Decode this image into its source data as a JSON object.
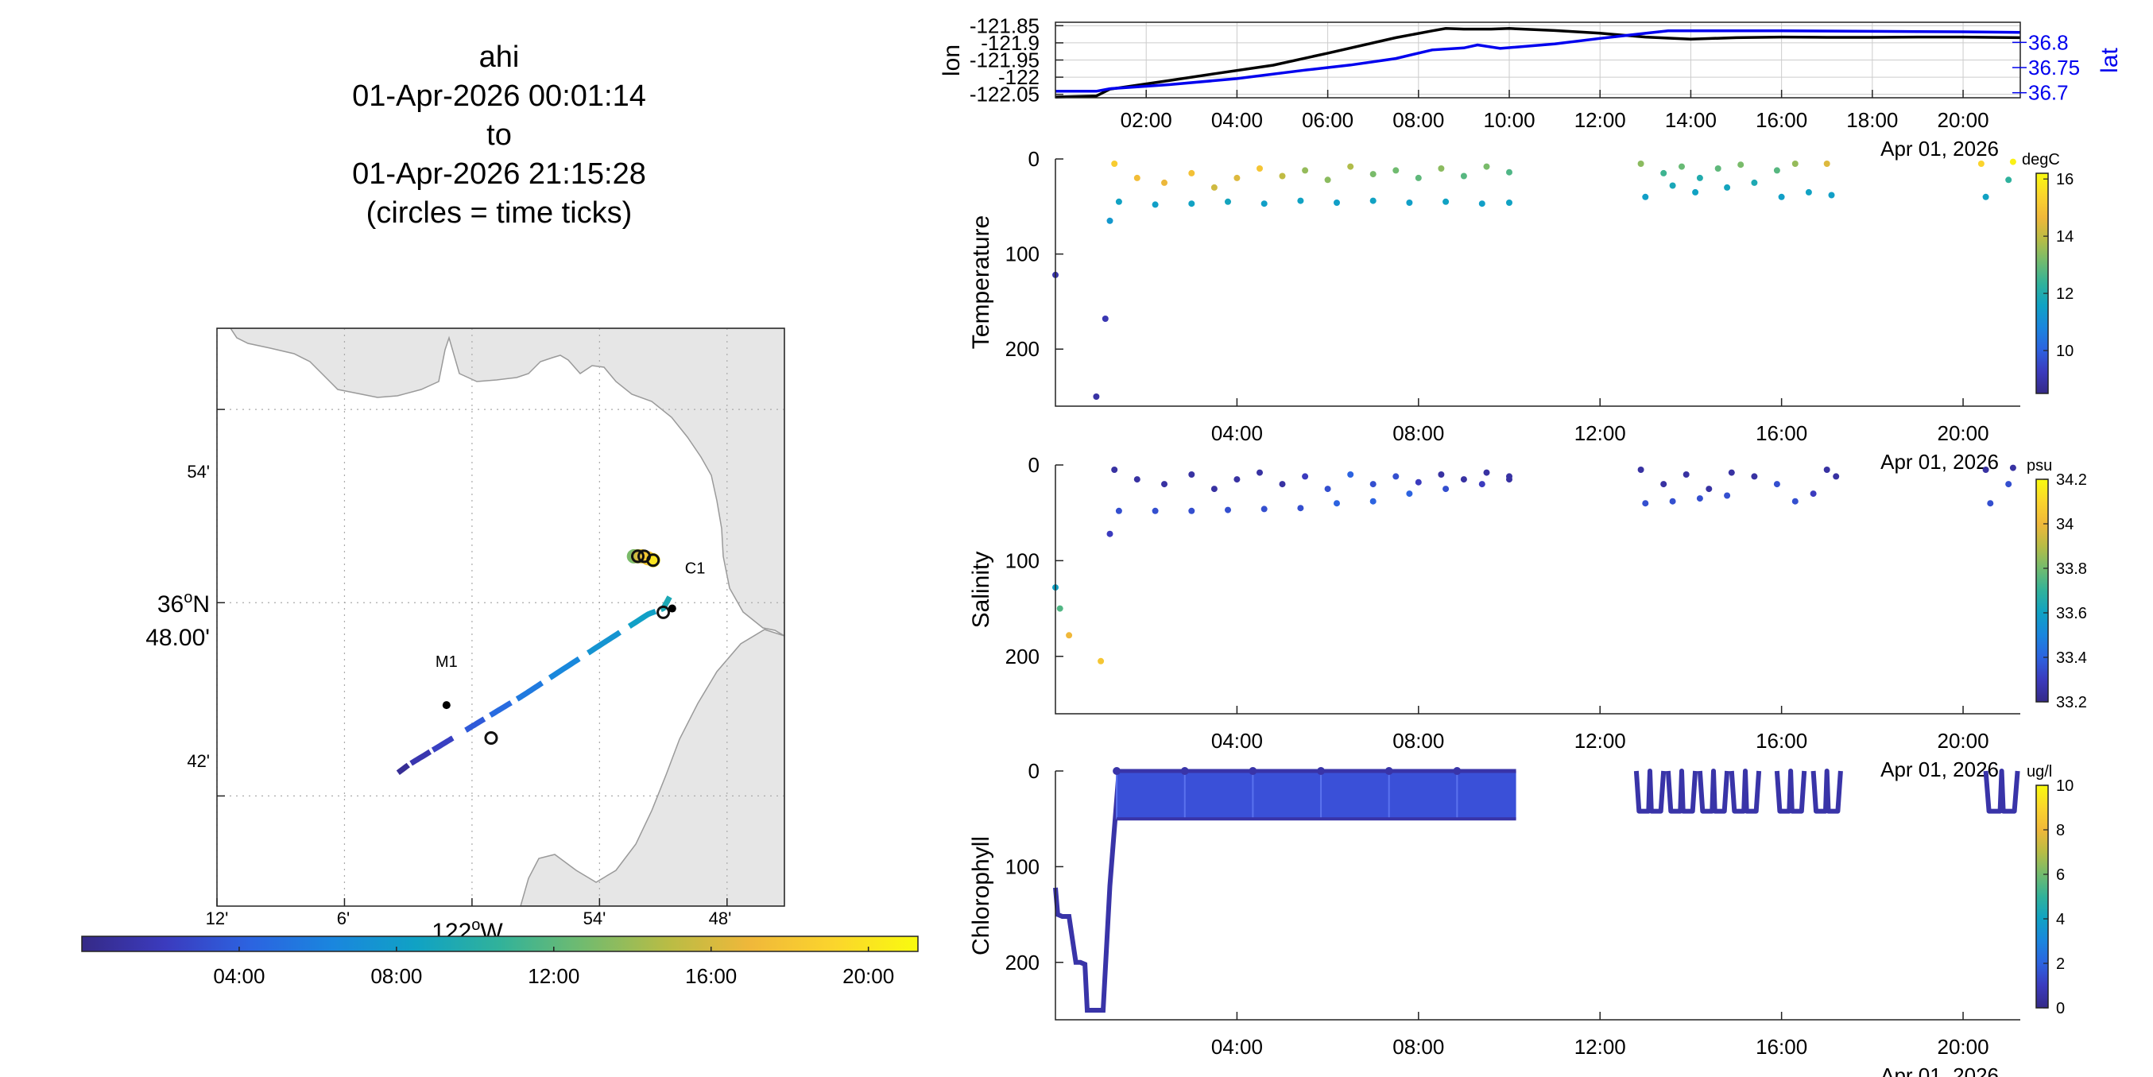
{
  "colors": {
    "axis": "#222222",
    "grid": "#cccccc",
    "land": "#e6e6e6",
    "coast": "#9a9a9a",
    "lon_line": "#000000",
    "lat_line": "#0000ee",
    "map_grid": "#aaaaaa"
  },
  "title": {
    "vehicle": "ahi",
    "start": "01-Apr-2026 00:01:14",
    "to": "to",
    "end": "01-Apr-2026 21:15:28",
    "note": "(circles = time ticks)"
  },
  "map": {
    "lat_ticks": [
      "54'",
      "36°N 48.00'",
      "42'"
    ],
    "lon_ticks": [
      "12'",
      "6'",
      "122°W",
      "54'",
      "48'"
    ],
    "lat_values": [
      36.9,
      36.8,
      36.7
    ],
    "lon_values": [
      -122.2,
      -122.1,
      -122.0,
      -121.9,
      -121.8
    ],
    "moorings": [
      {
        "name": "M1",
        "lon": -122.02,
        "lat": 36.747
      },
      {
        "name": "C1",
        "lon": -121.843,
        "lat": 36.797
      }
    ],
    "track": [
      {
        "t": 0.02,
        "lon": -122.058,
        "lat": 36.712
      },
      {
        "t": 0.9,
        "lon": -122.05,
        "lat": 36.716
      },
      {
        "t": 1.1,
        "lon": -122.05,
        "lat": 36.716
      },
      {
        "t": 2.5,
        "lon": -122.02,
        "lat": 36.728
      },
      {
        "t": 4.0,
        "lon": -121.995,
        "lat": 36.738
      },
      {
        "t": 5.5,
        "lon": -121.96,
        "lat": 36.752
      },
      {
        "t": 6.5,
        "lon": -121.93,
        "lat": 36.765
      },
      {
        "t": 7.5,
        "lon": -121.895,
        "lat": 36.78
      },
      {
        "t": 8.4,
        "lon": -121.862,
        "lat": 36.794
      },
      {
        "t": 9.0,
        "lon": -121.85,
        "lat": 36.797
      },
      {
        "t": 9.6,
        "lon": -121.845,
        "lat": 36.803
      },
      {
        "t": 10.2,
        "lon": -121.845,
        "lat": 36.803
      }
    ],
    "track_segments": [
      [
        0.02,
        1.1
      ],
      [
        1.2,
        1.9
      ],
      [
        2.0,
        2.8
      ],
      [
        3.4,
        4.2
      ],
      [
        4.4,
        5.1
      ],
      [
        5.3,
        6.0
      ],
      [
        6.2,
        6.9
      ],
      [
        7.1,
        7.8
      ],
      [
        8.0,
        8.7
      ],
      [
        8.9,
        9.6
      ],
      [
        9.7,
        10.2
      ]
    ],
    "c1_cluster": [
      {
        "t": 13.0,
        "lon": -121.873,
        "lat": 36.824
      },
      {
        "t": 14.5,
        "lon": -121.87,
        "lat": 36.824
      },
      {
        "t": 16.0,
        "lon": -121.867,
        "lat": 36.824
      },
      {
        "t": 18.0,
        "lon": -121.862,
        "lat": 36.823
      },
      {
        "t": 20.0,
        "lon": -121.858,
        "lat": 36.822
      }
    ],
    "time_tick_circles": [
      {
        "lon": -121.985,
        "lat": 36.73
      },
      {
        "lon": -121.85,
        "lat": 36.795
      },
      {
        "lon": -121.87,
        "lat": 36.824
      },
      {
        "lon": -121.865,
        "lat": 36.824
      },
      {
        "lon": -121.858,
        "lat": 36.822
      }
    ]
  },
  "time_colorbar": {
    "ticks": [
      "04:00",
      "08:00",
      "12:00",
      "16:00",
      "20:00"
    ],
    "tick_hours": [
      4,
      8,
      12,
      16,
      20
    ],
    "range_hours": [
      0,
      21.26
    ]
  },
  "chart_data": [
    {
      "type": "line",
      "title": "",
      "xlabel": "Apr 01, 2026",
      "ylabel": "lon",
      "y2label": "lat",
      "x_range_hours": [
        0,
        21.26
      ],
      "x_ticks": [
        "02:00",
        "04:00",
        "06:00",
        "08:00",
        "10:00",
        "12:00",
        "14:00",
        "16:00",
        "18:00",
        "20:00"
      ],
      "x_tick_hours": [
        2,
        4,
        6,
        8,
        10,
        12,
        14,
        16,
        18,
        20
      ],
      "ylim": [
        -122.06,
        -121.84
      ],
      "y_ticks": [
        "-121.85",
        "-121.9",
        "-121.95",
        "-122",
        "-122.05"
      ],
      "y_tick_values": [
        -121.85,
        -121.9,
        -121.95,
        -122.0,
        -122.05
      ],
      "y2lim": [
        36.69,
        36.84
      ],
      "y2_ticks": [
        "36.8",
        "36.75",
        "36.7"
      ],
      "y2_tick_values": [
        36.8,
        36.75,
        36.7
      ],
      "series": [
        {
          "name": "lon",
          "axis": "left",
          "x": [
            0,
            0.9,
            1.2,
            2.5,
            3.5,
            4.8,
            6.0,
            7.5,
            8.3,
            8.6,
            9.0,
            9.6,
            10.0,
            11.0,
            12.0,
            13.0,
            14.0,
            15.0,
            16.0,
            17.0,
            18.0,
            19.0,
            20.0,
            21.26
          ],
          "values": [
            -122.058,
            -122.055,
            -122.035,
            -122.01,
            -121.99,
            -121.965,
            -121.93,
            -121.885,
            -121.865,
            -121.858,
            -121.86,
            -121.86,
            -121.858,
            -121.864,
            -121.872,
            -121.883,
            -121.889,
            -121.885,
            -121.883,
            -121.884,
            -121.884,
            -121.883,
            -121.883,
            -121.885
          ]
        },
        {
          "name": "lat",
          "axis": "right",
          "x": [
            0,
            0.9,
            1.2,
            2.5,
            4.0,
            5.5,
            6.5,
            7.5,
            8.3,
            9.0,
            9.3,
            9.8,
            11.0,
            12.0,
            13.0,
            13.5,
            14.5,
            16.0,
            18.0,
            20.0,
            21.26
          ],
          "values": [
            36.703,
            36.703,
            36.708,
            36.716,
            36.728,
            36.745,
            36.755,
            36.768,
            36.785,
            36.789,
            36.795,
            36.788,
            36.797,
            36.808,
            36.818,
            36.823,
            36.823,
            36.823,
            36.822,
            36.821,
            36.82
          ]
        }
      ]
    },
    {
      "type": "scatter",
      "title": "",
      "xlabel": "Apr 01, 2026",
      "ylabel": "Temperature",
      "units": "degC",
      "x_range_hours": [
        0,
        21.26
      ],
      "x_ticks": [
        "04:00",
        "08:00",
        "12:00",
        "16:00",
        "20:00"
      ],
      "x_tick_hours": [
        4,
        8,
        12,
        16,
        20
      ],
      "ylim": [
        260,
        0
      ],
      "y_ticks": [
        "0",
        "100",
        "200"
      ],
      "y_tick_values": [
        0,
        100,
        200
      ],
      "clim": [
        8.5,
        16.2
      ],
      "colorbar_ticks": [
        "10",
        "12",
        "14",
        "16"
      ],
      "colorbar_tick_values": [
        10,
        12,
        14,
        16
      ],
      "points": [
        [
          0.0,
          122,
          9.0
        ],
        [
          0.9,
          250,
          8.9
        ],
        [
          1.1,
          168,
          9.1
        ],
        [
          1.2,
          65,
          11.3
        ],
        [
          1.3,
          5,
          15.2
        ],
        [
          1.8,
          20,
          14.8
        ],
        [
          2.4,
          25,
          14.6
        ],
        [
          3.0,
          15,
          14.9
        ],
        [
          3.5,
          30,
          14.2
        ],
        [
          4.0,
          20,
          14.4
        ],
        [
          4.5,
          10,
          15.0
        ],
        [
          5.0,
          18,
          14.0
        ],
        [
          5.5,
          12,
          13.5
        ],
        [
          6.0,
          22,
          13.4
        ],
        [
          6.5,
          8,
          13.8
        ],
        [
          7.0,
          16,
          13.2
        ],
        [
          7.5,
          12,
          13.1
        ],
        [
          8.0,
          20,
          12.9
        ],
        [
          8.5,
          10,
          13.4
        ],
        [
          9.0,
          18,
          12.8
        ],
        [
          9.5,
          8,
          13.2
        ],
        [
          10.0,
          14,
          12.7
        ],
        [
          1.4,
          45,
          11.6
        ],
        [
          2.2,
          48,
          11.5
        ],
        [
          3.0,
          47,
          11.6
        ],
        [
          3.8,
          45,
          11.7
        ],
        [
          4.6,
          47,
          11.5
        ],
        [
          5.4,
          44,
          11.6
        ],
        [
          6.2,
          46,
          11.5
        ],
        [
          7.0,
          44,
          11.6
        ],
        [
          7.8,
          46,
          11.5
        ],
        [
          8.6,
          45,
          11.6
        ],
        [
          9.4,
          47,
          11.5
        ],
        [
          10.0,
          46,
          11.6
        ],
        [
          12.9,
          5,
          13.4
        ],
        [
          13.4,
          15,
          12.5
        ],
        [
          13.8,
          8,
          13.0
        ],
        [
          14.2,
          20,
          12.0
        ],
        [
          14.6,
          10,
          12.9
        ],
        [
          15.1,
          6,
          13.2
        ],
        [
          13.0,
          40,
          11.5
        ],
        [
          13.6,
          28,
          11.8
        ],
        [
          14.1,
          35,
          11.6
        ],
        [
          14.8,
          30,
          11.7
        ],
        [
          15.4,
          25,
          11.9
        ],
        [
          15.9,
          12,
          12.8
        ],
        [
          16.3,
          5,
          13.5
        ],
        [
          16.0,
          40,
          11.5
        ],
        [
          16.6,
          35,
          11.6
        ],
        [
          17.0,
          5,
          14.4
        ],
        [
          17.1,
          38,
          11.5
        ],
        [
          20.4,
          5,
          15.4
        ],
        [
          20.5,
          40,
          11.6
        ],
        [
          21.0,
          22,
          12.3
        ],
        [
          21.1,
          3,
          16.0
        ]
      ]
    },
    {
      "type": "scatter",
      "title": "",
      "xlabel": "Apr 01, 2026",
      "ylabel": "Salinity",
      "units": "psu",
      "x_range_hours": [
        0,
        21.26
      ],
      "x_ticks": [
        "04:00",
        "08:00",
        "12:00",
        "16:00",
        "20:00"
      ],
      "x_tick_hours": [
        4,
        8,
        12,
        16,
        20
      ],
      "ylim": [
        260,
        0
      ],
      "y_ticks": [
        "0",
        "100",
        "200"
      ],
      "y_tick_values": [
        0,
        100,
        200
      ],
      "clim": [
        33.2,
        34.2
      ],
      "colorbar_ticks": [
        "33.2",
        "33.4",
        "33.6",
        "33.8",
        "34",
        "34.2"
      ],
      "colorbar_tick_values": [
        33.2,
        33.4,
        33.6,
        33.8,
        34.0,
        34.2
      ],
      "points": [
        [
          0.0,
          128,
          33.6
        ],
        [
          0.1,
          150,
          33.75
        ],
        [
          0.3,
          178,
          34.0
        ],
        [
          1.0,
          205,
          34.05
        ],
        [
          1.2,
          72,
          33.3
        ],
        [
          1.3,
          5,
          33.25
        ],
        [
          1.8,
          15,
          33.25
        ],
        [
          2.4,
          20,
          33.25
        ],
        [
          3.0,
          10,
          33.25
        ],
        [
          3.5,
          25,
          33.25
        ],
        [
          4.0,
          15,
          33.25
        ],
        [
          4.5,
          8,
          33.25
        ],
        [
          5.0,
          20,
          33.25
        ],
        [
          5.5,
          12,
          33.3
        ],
        [
          6.0,
          25,
          33.35
        ],
        [
          6.5,
          10,
          33.4
        ],
        [
          7.0,
          20,
          33.35
        ],
        [
          7.5,
          12,
          33.35
        ],
        [
          8.0,
          18,
          33.3
        ],
        [
          8.5,
          10,
          33.25
        ],
        [
          9.0,
          15,
          33.25
        ],
        [
          9.5,
          8,
          33.25
        ],
        [
          10.0,
          12,
          33.25
        ],
        [
          1.4,
          48,
          33.35
        ],
        [
          2.2,
          48,
          33.35
        ],
        [
          3.0,
          48,
          33.35
        ],
        [
          3.8,
          47,
          33.35
        ],
        [
          4.6,
          46,
          33.35
        ],
        [
          5.4,
          45,
          33.35
        ],
        [
          6.2,
          40,
          33.4
        ],
        [
          7.0,
          38,
          33.4
        ],
        [
          7.8,
          30,
          33.4
        ],
        [
          8.6,
          25,
          33.35
        ],
        [
          9.4,
          20,
          33.3
        ],
        [
          10.0,
          15,
          33.25
        ],
        [
          12.9,
          5,
          33.25
        ],
        [
          13.4,
          20,
          33.25
        ],
        [
          13.9,
          10,
          33.25
        ],
        [
          14.4,
          25,
          33.25
        ],
        [
          14.9,
          8,
          33.25
        ],
        [
          13.0,
          40,
          33.35
        ],
        [
          13.6,
          38,
          33.35
        ],
        [
          14.2,
          35,
          33.35
        ],
        [
          14.8,
          32,
          33.35
        ],
        [
          15.4,
          12,
          33.25
        ],
        [
          15.9,
          20,
          33.35
        ],
        [
          16.3,
          38,
          33.35
        ],
        [
          16.7,
          30,
          33.3
        ],
        [
          17.0,
          5,
          33.25
        ],
        [
          17.2,
          12,
          33.25
        ],
        [
          20.5,
          5,
          33.25
        ],
        [
          20.6,
          40,
          33.35
        ],
        [
          21.0,
          20,
          33.35
        ],
        [
          21.1,
          3,
          33.25
        ]
      ]
    },
    {
      "type": "scatter",
      "title": "",
      "xlabel": "Apr 01, 2026",
      "ylabel": "Chlorophyll",
      "units": "ug/l",
      "x_range_hours": [
        0,
        21.26
      ],
      "x_ticks": [
        "04:00",
        "08:00",
        "12:00",
        "16:00",
        "20:00"
      ],
      "x_tick_hours": [
        4,
        8,
        12,
        16,
        20
      ],
      "ylim": [
        260,
        0
      ],
      "y_ticks": [
        "0",
        "100",
        "200"
      ],
      "y_tick_values": [
        0,
        100,
        200
      ],
      "clim": [
        0,
        10
      ],
      "colorbar_ticks": [
        "0",
        "2",
        "4",
        "6",
        "8",
        "10"
      ],
      "colorbar_tick_values": [
        0,
        2,
        4,
        6,
        8,
        10
      ],
      "profile_path": {
        "x": [
          0.0,
          0.05,
          0.15,
          0.3,
          0.45,
          0.55,
          0.65,
          0.7,
          0.8,
          0.95,
          1.05,
          1.2,
          1.4
        ],
        "values": [
          122,
          150,
          152,
          152,
          200,
          200,
          202,
          250,
          250,
          250,
          250,
          120,
          0
        ]
      },
      "sawtooth_block": [
        1.35,
        10.15,
        0,
        50,
        1.5
      ],
      "yo_segments": [
        [
          12.8,
          13.4
        ],
        [
          13.5,
          14.1
        ],
        [
          14.2,
          14.8
        ],
        [
          14.9,
          15.5
        ],
        [
          15.9,
          16.5
        ],
        [
          16.7,
          17.3
        ],
        [
          20.5,
          21.2
        ]
      ],
      "yo_depth": 42,
      "value_level": 0.6
    }
  ]
}
